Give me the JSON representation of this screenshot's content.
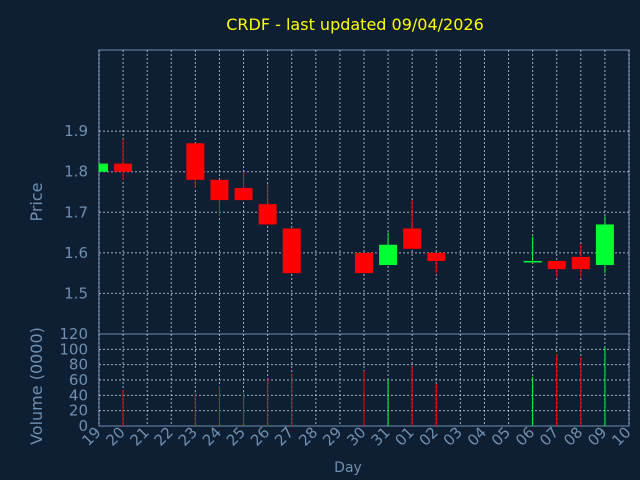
{
  "title": "CRDF - last updated 09/04/2026",
  "colors": {
    "background": "#0f1f33",
    "panel_border": "#6f8fb0",
    "grid": "#c8d0dc",
    "title": "#ffff00",
    "axis_text": "#6f8fb0",
    "up": "#00ff33",
    "down": "#ff0000"
  },
  "chart_data": [
    {
      "type": "candlestick",
      "ylabel": "Price",
      "ylim": [
        1.4,
        2.1
      ],
      "yticks": [
        1.5,
        1.6,
        1.7,
        1.8,
        1.9
      ],
      "ytick_labels": [
        "1.5",
        "1.6",
        "1.7",
        "1.8",
        "1.9"
      ],
      "grid": true,
      "candles": [
        {
          "day": "19",
          "open": 1.8,
          "close": 1.82,
          "high": 1.82,
          "low": 1.8
        },
        {
          "day": "20",
          "open": 1.82,
          "close": 1.8,
          "high": 1.88,
          "low": 1.78
        },
        {
          "day": "23",
          "open": 1.87,
          "close": 1.78,
          "high": 1.87,
          "low": 1.76
        },
        {
          "day": "24",
          "open": 1.78,
          "close": 1.73,
          "high": 1.78,
          "low": 1.69
        },
        {
          "day": "25",
          "open": 1.76,
          "close": 1.73,
          "high": 1.8,
          "low": 1.73
        },
        {
          "day": "26",
          "open": 1.72,
          "close": 1.67,
          "high": 1.77,
          "low": 1.67
        },
        {
          "day": "27",
          "open": 1.66,
          "close": 1.55,
          "high": 1.66,
          "low": 1.55
        },
        {
          "day": "30",
          "open": 1.6,
          "close": 1.55,
          "high": 1.6,
          "low": 1.55
        },
        {
          "day": "31",
          "open": 1.57,
          "close": 1.62,
          "high": 1.65,
          "low": 1.57
        },
        {
          "day": "01",
          "open": 1.66,
          "close": 1.61,
          "high": 1.73,
          "low": 1.61
        },
        {
          "day": "02",
          "open": 1.6,
          "close": 1.58,
          "high": 1.6,
          "low": 1.55
        },
        {
          "day": "06",
          "open": 1.58,
          "close": 1.58,
          "high": 1.64,
          "low": 1.58
        },
        {
          "day": "07",
          "open": 1.58,
          "close": 1.56,
          "high": 1.58,
          "low": 1.54
        },
        {
          "day": "08",
          "open": 1.59,
          "close": 1.56,
          "high": 1.62,
          "low": 1.54
        },
        {
          "day": "09",
          "open": 1.57,
          "close": 1.67,
          "high": 1.69,
          "low": 1.55
        }
      ]
    },
    {
      "type": "bar",
      "ylabel": "Volume (0000)",
      "xlabel": "Day",
      "ylim": [
        0,
        120
      ],
      "yticks": [
        0,
        20,
        40,
        60,
        80,
        100,
        120
      ],
      "ytick_labels": [
        "0",
        "20",
        "40",
        "60",
        "80",
        "100",
        "120"
      ],
      "grid": true,
      "categories": [
        "19",
        "20",
        "21",
        "22",
        "23",
        "24",
        "25",
        "26",
        "27",
        "28",
        "29",
        "30",
        "31",
        "01",
        "02",
        "03",
        "04",
        "05",
        "06",
        "07",
        "08",
        "09",
        "10"
      ],
      "bars": [
        {
          "day": "20",
          "value": 47,
          "direction": "down"
        },
        {
          "day": "23",
          "value": 43,
          "direction": "down"
        },
        {
          "day": "24",
          "value": 52,
          "direction": "down"
        },
        {
          "day": "25",
          "value": 44,
          "direction": "down"
        },
        {
          "day": "26",
          "value": 62,
          "direction": "down"
        },
        {
          "day": "27",
          "value": 68,
          "direction": "down"
        },
        {
          "day": "30",
          "value": 72,
          "direction": "down"
        },
        {
          "day": "31",
          "value": 62,
          "direction": "up"
        },
        {
          "day": "01",
          "value": 78,
          "direction": "down"
        },
        {
          "day": "02",
          "value": 55,
          "direction": "down"
        },
        {
          "day": "06",
          "value": 64,
          "direction": "up"
        },
        {
          "day": "07",
          "value": 94,
          "direction": "down"
        },
        {
          "day": "08",
          "value": 90,
          "direction": "down"
        },
        {
          "day": "09",
          "value": 103,
          "direction": "up"
        }
      ]
    }
  ]
}
